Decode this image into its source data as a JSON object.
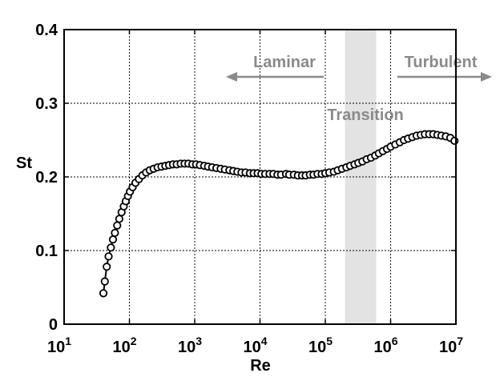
{
  "chart_data": {
    "type": "line",
    "title": "",
    "xlabel": "Re",
    "ylabel": "St",
    "xscale": "log",
    "xlim": [
      10,
      10000000
    ],
    "ylim": [
      0,
      0.4
    ],
    "grid": true,
    "x_ticks": [
      {
        "value": 10,
        "base": "10",
        "exp": "1"
      },
      {
        "value": 100,
        "base": "10",
        "exp": "2"
      },
      {
        "value": 1000,
        "base": "10",
        "exp": "3"
      },
      {
        "value": 10000,
        "base": "10",
        "exp": "4"
      },
      {
        "value": 100000,
        "base": "10",
        "exp": "5"
      },
      {
        "value": 1000000,
        "base": "10",
        "exp": "6"
      },
      {
        "value": 10000000,
        "base": "10",
        "exp": "7"
      }
    ],
    "y_ticks": [
      {
        "value": 0,
        "label": "0"
      },
      {
        "value": 0.1,
        "label": "0.1"
      },
      {
        "value": 0.2,
        "label": "0.2"
      },
      {
        "value": 0.3,
        "label": "0.3"
      },
      {
        "value": 0.4,
        "label": "0.4"
      }
    ],
    "series": [
      {
        "marker": "circle",
        "color": "#000000",
        "x": [
          40,
          42,
          45,
          48,
          52,
          56,
          60,
          65,
          70,
          76,
          82,
          88,
          95,
          102,
          112,
          124,
          140,
          158,
          180,
          205,
          235,
          270,
          310,
          355,
          405,
          465,
          530,
          610,
          700,
          800,
          920,
          1050,
          1200,
          1400,
          1600,
          1850,
          2150,
          2500,
          2900,
          3400,
          3900,
          4500,
          5200,
          6000,
          7000,
          8000,
          9200,
          10500,
          12000,
          14000,
          16000,
          18500,
          21000,
          25000,
          28000,
          33000,
          38000,
          44000,
          50000,
          58000,
          66000,
          76000,
          88000,
          100000,
          115000,
          135000,
          155000,
          180000,
          210000,
          240000,
          280000,
          320000,
          370000,
          430000,
          500000,
          580000,
          660000,
          760000,
          880000,
          1000000,
          1180000,
          1380000,
          1600000,
          1850000,
          2150000,
          2500000,
          2900000,
          3350000,
          3900000,
          4500000,
          5200000,
          6000000,
          7000000,
          8200000,
          9500000
        ],
        "y": [
          0.042,
          0.058,
          0.078,
          0.092,
          0.104,
          0.115,
          0.124,
          0.134,
          0.143,
          0.152,
          0.16,
          0.167,
          0.174,
          0.18,
          0.186,
          0.192,
          0.197,
          0.202,
          0.206,
          0.209,
          0.211,
          0.213,
          0.214,
          0.215,
          0.216,
          0.217,
          0.217,
          0.218,
          0.218,
          0.218,
          0.217,
          0.217,
          0.216,
          0.215,
          0.214,
          0.213,
          0.212,
          0.211,
          0.21,
          0.209,
          0.208,
          0.207,
          0.206,
          0.206,
          0.205,
          0.205,
          0.205,
          0.204,
          0.204,
          0.204,
          0.204,
          0.203,
          0.203,
          0.204,
          0.203,
          0.203,
          0.202,
          0.202,
          0.202,
          0.203,
          0.203,
          0.204,
          0.204,
          0.205,
          0.206,
          0.207,
          0.209,
          0.211,
          0.213,
          0.215,
          0.217,
          0.219,
          0.221,
          0.224,
          0.226,
          0.229,
          0.232,
          0.235,
          0.238,
          0.241,
          0.244,
          0.247,
          0.25,
          0.252,
          0.254,
          0.256,
          0.257,
          0.258,
          0.258,
          0.258,
          0.257,
          0.256,
          0.255,
          0.253,
          0.249
        ]
      }
    ],
    "shaded_region": {
      "x_start": 200000,
      "x_end": 600000,
      "color": "#e3e3e3"
    },
    "annotations": [
      {
        "text": "Laminar",
        "arrow": "left",
        "color": "#8a8a8a"
      },
      {
        "text": "Transition",
        "color": "#8a8a8a"
      },
      {
        "text": "Turbulent",
        "arrow": "right",
        "color": "#8a8a8a"
      }
    ]
  }
}
